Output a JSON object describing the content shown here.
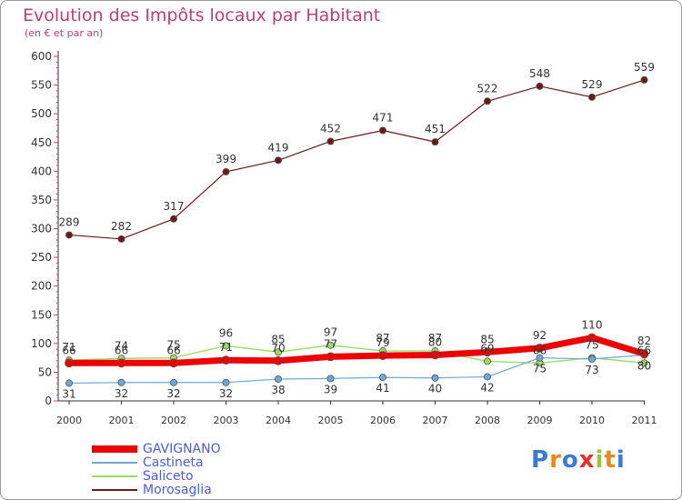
{
  "title": "Evolution des Impôts locaux par Habitant",
  "subtitle": "(en € et par an)",
  "logo_text": "Proxiti",
  "chart_data": {
    "type": "line",
    "x": [
      "2000",
      "2001",
      "2002",
      "2003",
      "2004",
      "2005",
      "2006",
      "2007",
      "2008",
      "2009",
      "2010",
      "2011"
    ],
    "ylim": [
      0,
      600
    ],
    "yticks": [
      0,
      50,
      100,
      150,
      200,
      250,
      300,
      350,
      400,
      450,
      500,
      550,
      600
    ],
    "grid": false,
    "legend_position": "bottom-left",
    "series": [
      {
        "name": "GAVIGNANO",
        "color": "#ee0000",
        "values": [
          66,
          66,
          66,
          71,
          70,
          77,
          79,
          80,
          85,
          92,
          110,
          82
        ]
      },
      {
        "name": "Castineta",
        "color": "#6fa8d6",
        "values": [
          31,
          32,
          32,
          32,
          38,
          39,
          41,
          40,
          42,
          75,
          73,
          80
        ]
      },
      {
        "name": "Saliceto",
        "color": "#99dd66",
        "values": [
          71,
          74,
          75,
          96,
          85,
          97,
          87,
          87,
          69,
          66,
          75,
          66
        ]
      },
      {
        "name": "Morosaglia",
        "color": "#6b1a1a",
        "values": [
          289,
          282,
          317,
          399,
          419,
          452,
          471,
          451,
          522,
          548,
          529,
          559
        ]
      }
    ]
  }
}
